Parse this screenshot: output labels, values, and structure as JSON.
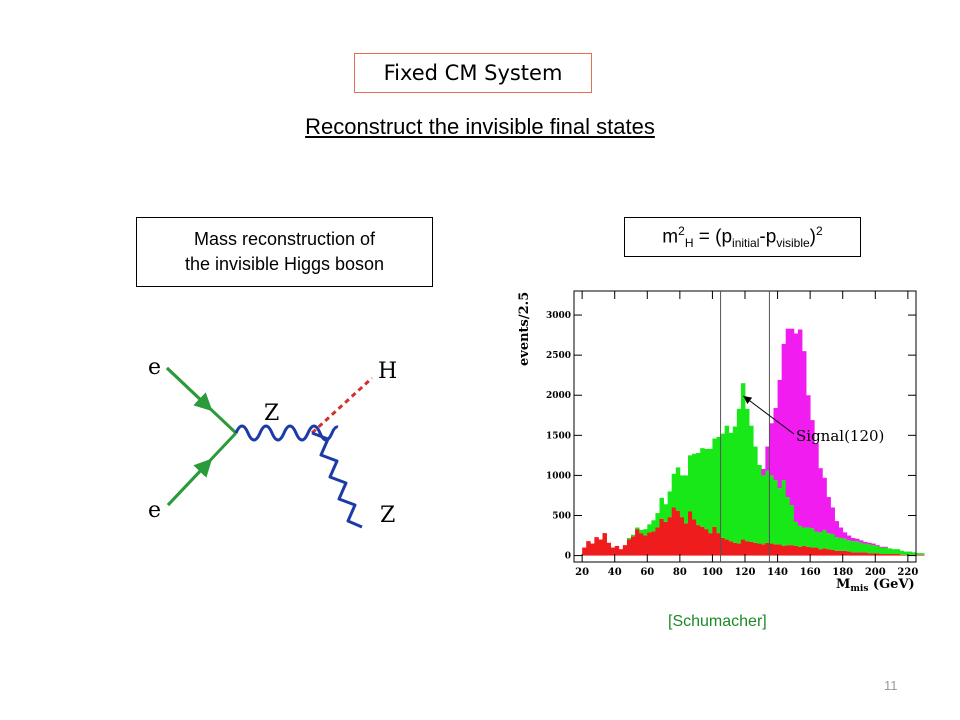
{
  "slide": {
    "title": "Fixed CM System",
    "subtitle": "Reconstruct the invisible final states",
    "left_box": [
      "Mass reconstruction of",
      "the invisible Higgs boson"
    ],
    "formula": {
      "m": "m",
      "m_sup": "2",
      "m_sub": "H",
      "eq": " = (p",
      "p1_sub": "initial",
      "minus": "-p",
      "p2_sub": "visible",
      "close": ")",
      "close_sup": "2"
    },
    "citation": "[Schumacher]",
    "page_number": "11"
  },
  "feynman": {
    "labels": {
      "e_top": "e",
      "e_bottom": "e",
      "z_mid": "Z",
      "higgs": "H",
      "z_out": "Z"
    },
    "colors": {
      "electron": "#2a9a3a",
      "z_boson": "#1c3aa8",
      "higgs": "#d43030"
    }
  },
  "chart_data": {
    "type": "bar",
    "stacked": true,
    "ylabel": "events/2.5",
    "xlabel": "M",
    "xlabel_sub": "mis",
    "xlabel_unit": " (GeV)",
    "xlim": [
      15,
      225
    ],
    "ylim": [
      -80,
      3300
    ],
    "xticks": [
      20,
      40,
      60,
      80,
      100,
      120,
      140,
      160,
      180,
      200,
      220
    ],
    "yticks": [
      0,
      500,
      1000,
      1500,
      2000,
      2500,
      3000
    ],
    "vlines": [
      105,
      135
    ],
    "annotation": {
      "text": "Signal(120)",
      "x": 119,
      "y": 1990
    },
    "bin_width": 2.5,
    "x_start": 20,
    "series": [
      {
        "color": "#ee1c1c",
        "values": [
          100,
          180,
          150,
          230,
          200,
          280,
          160,
          100,
          120,
          80,
          130,
          200,
          240,
          330,
          280,
          250,
          290,
          300,
          350,
          460,
          420,
          480,
          600,
          560,
          480,
          400,
          550,
          450,
          380,
          360,
          330,
          280,
          360,
          280,
          220,
          200,
          180,
          160,
          150,
          200,
          180,
          170,
          160,
          150,
          140,
          160,
          150,
          140,
          140,
          120,
          130,
          130,
          120,
          110,
          120,
          110,
          100,
          100,
          80,
          90,
          80,
          70,
          60,
          60,
          60,
          50,
          40,
          40,
          40,
          40,
          30,
          30,
          30,
          20,
          20,
          20,
          20,
          20,
          10,
          10,
          10,
          10,
          10,
          10
        ]
      },
      {
        "color": "#18e818",
        "values": [
          0,
          0,
          0,
          0,
          0,
          0,
          0,
          0,
          0,
          0,
          0,
          20,
          20,
          20,
          40,
          80,
          100,
          140,
          180,
          260,
          220,
          320,
          420,
          540,
          520,
          600,
          700,
          820,
          900,
          980,
          1000,
          1050,
          1100,
          1200,
          1300,
          1420,
          1350,
          1450,
          1680,
          1950,
          1650,
          1450,
          1200,
          980,
          860,
          900,
          850,
          800,
          700,
          820,
          600,
          500,
          300,
          260,
          230,
          240,
          240,
          200,
          210,
          230,
          200,
          200,
          170,
          160,
          150,
          140,
          140,
          140,
          120,
          110,
          110,
          100,
          90,
          80,
          80,
          70,
          60,
          60,
          50,
          40,
          40,
          30,
          20,
          20
        ]
      },
      {
        "color": "#f01cf0",
        "values": [
          0,
          0,
          0,
          0,
          0,
          0,
          0,
          0,
          0,
          0,
          0,
          0,
          0,
          0,
          0,
          0,
          0,
          0,
          0,
          0,
          0,
          0,
          0,
          0,
          0,
          0,
          0,
          0,
          0,
          0,
          0,
          0,
          0,
          0,
          0,
          0,
          0,
          0,
          0,
          0,
          0,
          0,
          0,
          0,
          80,
          300,
          650,
          900,
          1350,
          1700,
          2100,
          2200,
          2350,
          2450,
          2200,
          1650,
          1350,
          1100,
          800,
          650,
          450,
          330,
          200,
          130,
          80,
          60,
          40,
          30,
          30,
          20,
          20,
          20,
          10,
          10,
          10,
          0,
          0,
          0,
          0,
          0,
          0,
          0,
          0,
          0
        ]
      }
    ]
  }
}
